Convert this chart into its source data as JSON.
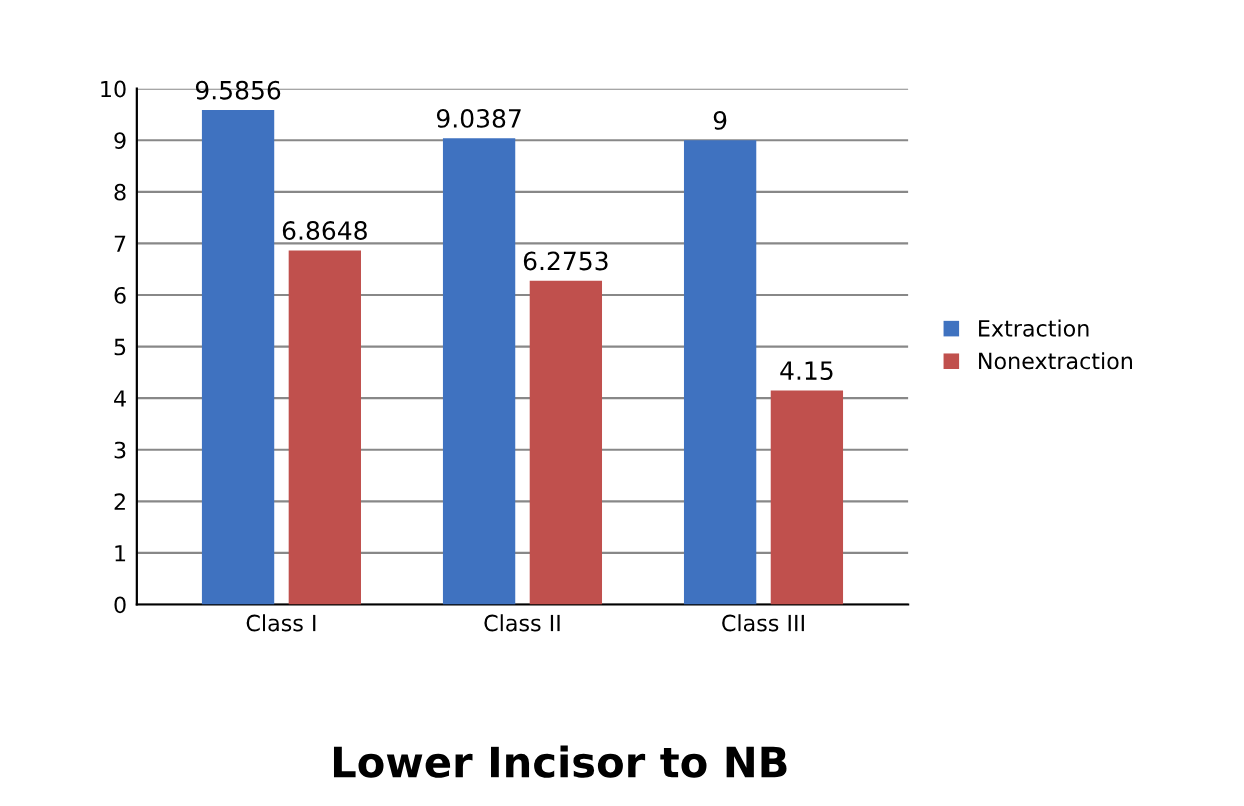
{
  "chart_data": {
    "type": "bar",
    "title": "Lower Incisor to NB",
    "categories": [
      "Class I",
      "Class II",
      "Class III"
    ],
    "series": [
      {
        "name": "Extraction",
        "color": "#3f72c0",
        "values": [
          9.5856,
          9.0387,
          9
        ]
      },
      {
        "name": "Nonextraction",
        "color": "#c0504d",
        "values": [
          6.8648,
          6.2753,
          4.15
        ]
      }
    ],
    "ylim": [
      0,
      10
    ],
    "yticks": [
      0,
      1,
      2,
      3,
      4,
      5,
      6,
      7,
      8,
      9,
      10
    ],
    "grid": "y",
    "legend": "right",
    "data_labels": true
  }
}
